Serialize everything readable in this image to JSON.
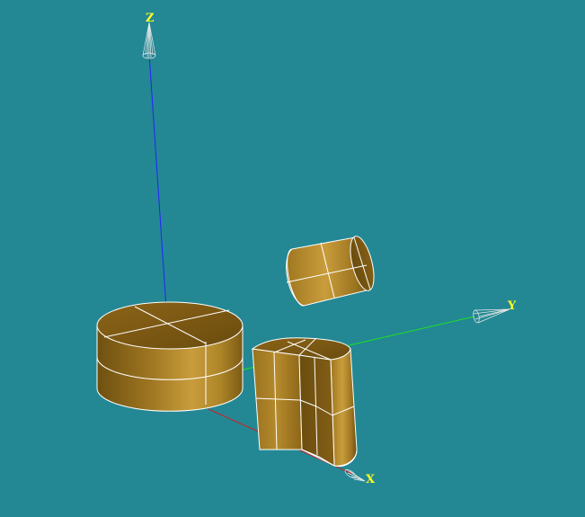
{
  "viewer": {
    "background_color": "#238894"
  },
  "axes": {
    "x": {
      "label": "X",
      "color": "#d02020"
    },
    "y": {
      "label": "Y",
      "color": "#21e021"
    },
    "z": {
      "label": "Z",
      "color": "#2222ff"
    },
    "label_color": "#ffff22",
    "arrow_color": "#e8e8e8"
  },
  "shapes": [
    {
      "name": "large-cylinder",
      "color": "#b8892a"
    },
    {
      "name": "small-cylinder",
      "color": "#b8892a"
    },
    {
      "name": "cut-solid",
      "color": "#b8892a"
    }
  ],
  "edge_color": "#ffffff"
}
